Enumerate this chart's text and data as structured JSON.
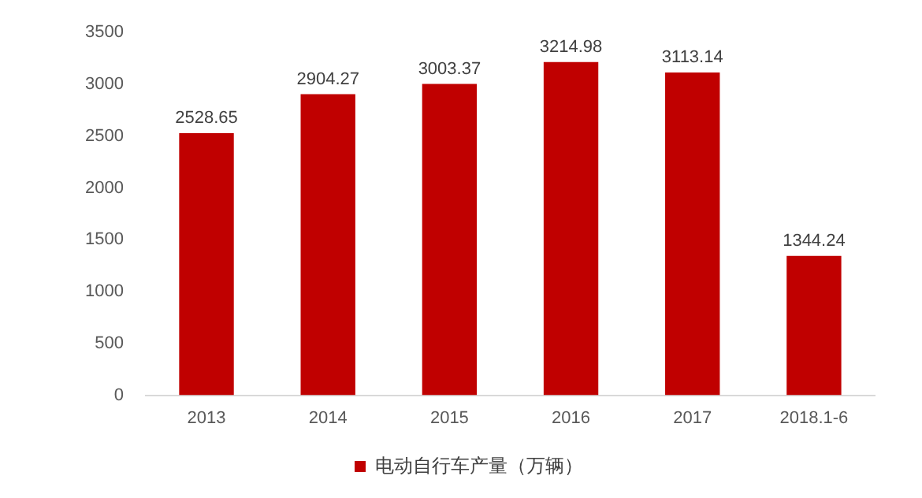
{
  "chart_data": {
    "type": "bar",
    "categories": [
      "2013",
      "2014",
      "2015",
      "2016",
      "2017",
      "2018.1-6"
    ],
    "series": [
      {
        "name": "电动自行车产量（万辆）",
        "color": "#c00000",
        "values": [
          2528.65,
          2904.27,
          3003.37,
          3214.98,
          3113.14,
          1344.24
        ]
      }
    ],
    "ylim": [
      0,
      3500
    ],
    "yticks": [
      0,
      500,
      1000,
      1500,
      2000,
      2500,
      3000,
      3500
    ],
    "grid": false,
    "legend": "bottom",
    "data_labels": true
  }
}
